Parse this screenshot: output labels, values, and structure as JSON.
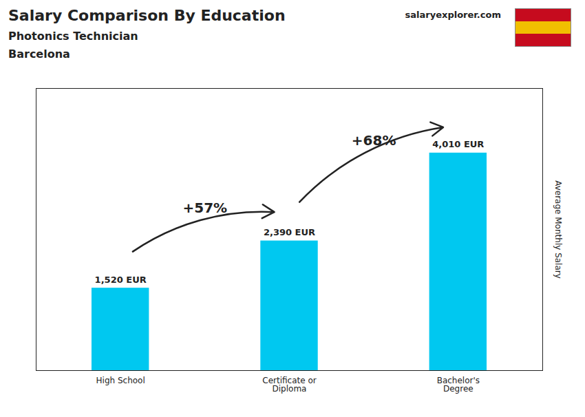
{
  "chart_data": {
    "type": "bar",
    "title": "Salary Comparison By Education",
    "subtitle": "Photonics Technician",
    "annotations": [
      {
        "text": "Barcelona"
      },
      {
        "text": "salaryexplorer.com"
      },
      {
        "text": "+57%",
        "from": "High School",
        "to": "Certificate or\nDiploma"
      },
      {
        "text": "+68%",
        "from": "Certificate or\nDiploma",
        "to": "Bachelor's\nDegree"
      }
    ],
    "categories": [
      "High School",
      "Certificate or\nDiploma",
      "Bachelor's\nDegree"
    ],
    "values": [
      1520,
      2390,
      4010
    ],
    "value_labels": [
      "1,520 EUR",
      "2,390 EUR",
      "4,010 EUR"
    ],
    "data_labels": true,
    "color": "#00c8f0",
    "ylabel": "Average Monthly Salary",
    "ylim": [
      0,
      5200
    ],
    "tick_labels": "x",
    "grid": false
  }
}
